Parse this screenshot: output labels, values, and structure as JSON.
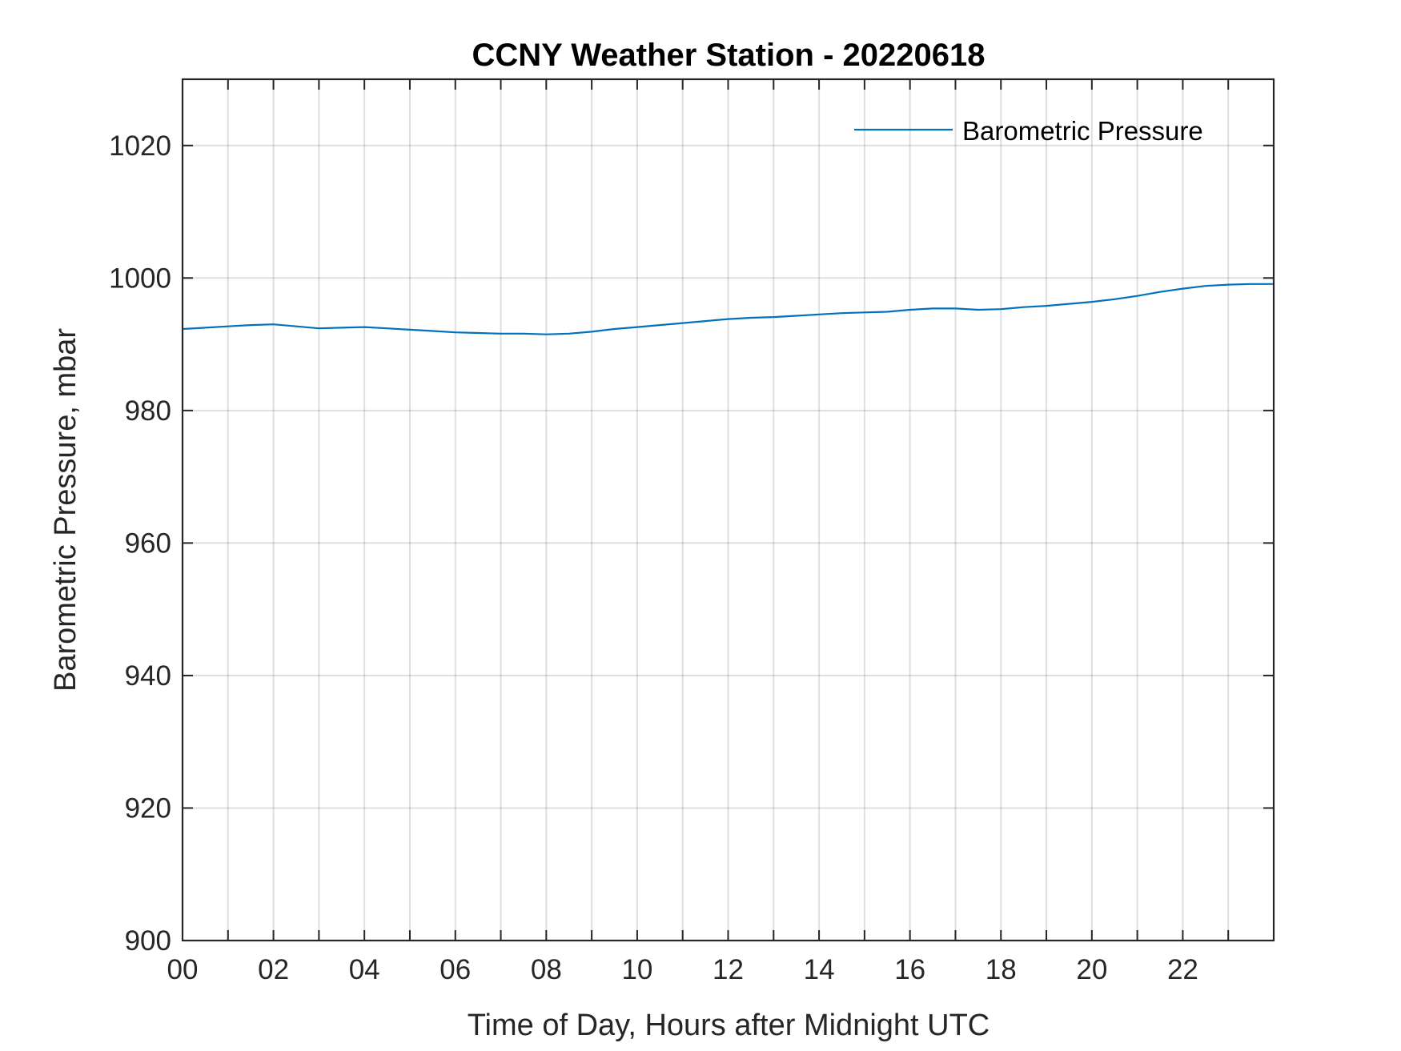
{
  "chart_data": {
    "type": "line",
    "title": "CCNY Weather Station - 20220618",
    "xlabel": "Time of Day, Hours after Midnight UTC",
    "ylabel": "Barometric Pressure, mbar",
    "xlim": [
      0,
      24
    ],
    "ylim": [
      900,
      1030
    ],
    "xticks": [
      {
        "value": 0,
        "label": "00"
      },
      {
        "value": 2,
        "label": "02"
      },
      {
        "value": 4,
        "label": "04"
      },
      {
        "value": 6,
        "label": "06"
      },
      {
        "value": 8,
        "label": "08"
      },
      {
        "value": 10,
        "label": "10"
      },
      {
        "value": 12,
        "label": "12"
      },
      {
        "value": 14,
        "label": "14"
      },
      {
        "value": 16,
        "label": "16"
      },
      {
        "value": 18,
        "label": "18"
      },
      {
        "value": 20,
        "label": "20"
      },
      {
        "value": 22,
        "label": "22"
      }
    ],
    "yticks": [
      900,
      920,
      940,
      960,
      980,
      1000,
      1020
    ],
    "grid": true,
    "minor_x_grid_hours": 1,
    "legend_position": "top-right",
    "series": [
      {
        "name": "Barometric Pressure",
        "color": "#0072BD",
        "x": [
          0,
          0.5,
          1,
          1.5,
          2,
          2.5,
          3,
          3.5,
          4,
          4.5,
          5,
          5.5,
          6,
          6.5,
          7,
          7.5,
          8,
          8.5,
          9,
          9.5,
          10,
          10.5,
          11,
          11.5,
          12,
          12.5,
          13,
          13.5,
          14,
          14.5,
          15,
          15.5,
          16,
          16.5,
          17,
          17.5,
          18,
          18.5,
          19,
          19.5,
          20,
          20.5,
          21,
          21.5,
          22,
          22.5,
          23,
          23.5,
          24
        ],
        "values": [
          992.3,
          992.5,
          992.7,
          992.9,
          993.0,
          992.7,
          992.4,
          992.5,
          992.6,
          992.4,
          992.2,
          992.0,
          991.8,
          991.7,
          991.6,
          991.6,
          991.5,
          991.6,
          991.9,
          992.3,
          992.6,
          992.9,
          993.2,
          993.5,
          993.8,
          994.0,
          994.1,
          994.3,
          994.5,
          994.7,
          994.8,
          994.9,
          995.2,
          995.4,
          995.4,
          995.2,
          995.3,
          995.6,
          995.8,
          996.1,
          996.4,
          996.8,
          997.3,
          997.9,
          998.4,
          998.8,
          999.0,
          999.1,
          999.1
        ]
      }
    ]
  }
}
